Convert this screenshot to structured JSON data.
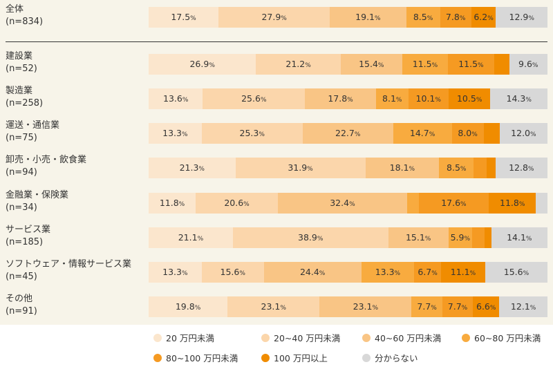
{
  "colors": [
    "#fbe6cd",
    "#fbd6ab",
    "#f9c585",
    "#f8ab3f",
    "#f59a22",
    "#f08c00",
    "#d8d8d8"
  ],
  "chart_data": {
    "type": "bar",
    "orientation": "horizontal-stacked-100",
    "legend_position": "bottom",
    "series": [
      {
        "name": "20 万円未満"
      },
      {
        "name": "20~40 万円未満"
      },
      {
        "name": "40~60 万円未満"
      },
      {
        "name": "60~80 万円未満"
      },
      {
        "name": "80~100 万円未満"
      },
      {
        "name": "100 万円以上"
      },
      {
        "name": "分からない"
      }
    ],
    "rows": [
      {
        "label": "全体",
        "n": "(n=834)",
        "values": [
          17.5,
          27.9,
          19.1,
          8.5,
          7.8,
          6.2,
          12.9
        ],
        "labels": [
          "17.5",
          "27.9",
          "19.1",
          "8.5",
          "7.8",
          "6.2",
          "12.9"
        ]
      },
      {
        "label": "建設業",
        "n": "(n=52)",
        "values": [
          26.9,
          21.2,
          15.4,
          11.5,
          11.5,
          3.8,
          9.6
        ],
        "labels": [
          "26.9",
          "21.2",
          "15.4",
          "11.5",
          "11.5",
          "",
          "9.6"
        ]
      },
      {
        "label": "製造業",
        "n": "(n=258)",
        "values": [
          13.6,
          25.6,
          17.8,
          8.1,
          10.1,
          10.5,
          14.3
        ],
        "labels": [
          "13.6",
          "25.6",
          "17.8",
          "8.1",
          "10.1",
          "10.5",
          "14.3"
        ]
      },
      {
        "label": "運送・通信業",
        "n": "(n=75)",
        "values": [
          13.3,
          25.3,
          22.7,
          14.7,
          8.0,
          4.0,
          12.0
        ],
        "labels": [
          "13.3",
          "25.3",
          "22.7",
          "14.7",
          "8.0",
          "",
          "12.0"
        ]
      },
      {
        "label": "卸売・小売・飲食業",
        "n": "(n=94)",
        "values": [
          21.3,
          31.9,
          18.1,
          8.5,
          3.2,
          2.1,
          12.8
        ],
        "labels": [
          "21.3",
          "31.9",
          "18.1",
          "8.5",
          "",
          "",
          "12.8"
        ]
      },
      {
        "label": "金融業・保険業",
        "n": "(n=34)",
        "values": [
          11.8,
          20.6,
          32.4,
          2.9,
          17.6,
          11.8,
          2.9
        ],
        "labels": [
          "11.8",
          "20.6",
          "32.4",
          "",
          "17.6",
          "11.8",
          ""
        ]
      },
      {
        "label": "サービス業",
        "n": "(n=185)",
        "values": [
          21.1,
          38.9,
          15.1,
          5.9,
          3.2,
          1.6,
          14.1
        ],
        "labels": [
          "21.1",
          "38.9",
          "15.1",
          "5.9",
          "",
          "",
          "14.1"
        ]
      },
      {
        "label": "ソフトウェア・情報サービス業",
        "n": "(n=45)",
        "values": [
          13.3,
          15.6,
          24.4,
          13.3,
          6.7,
          11.1,
          15.6
        ],
        "labels": [
          "13.3",
          "15.6",
          "24.4",
          "13.3",
          "6.7",
          "11.1",
          "15.6"
        ]
      },
      {
        "label": "その他",
        "n": "(n=91)",
        "values": [
          19.8,
          23.1,
          23.1,
          7.7,
          7.7,
          6.6,
          12.1
        ],
        "labels": [
          "19.8",
          "23.1",
          "23.1",
          "7.7",
          "7.7",
          "6.6",
          "12.1"
        ]
      }
    ],
    "value_suffix": "%"
  }
}
